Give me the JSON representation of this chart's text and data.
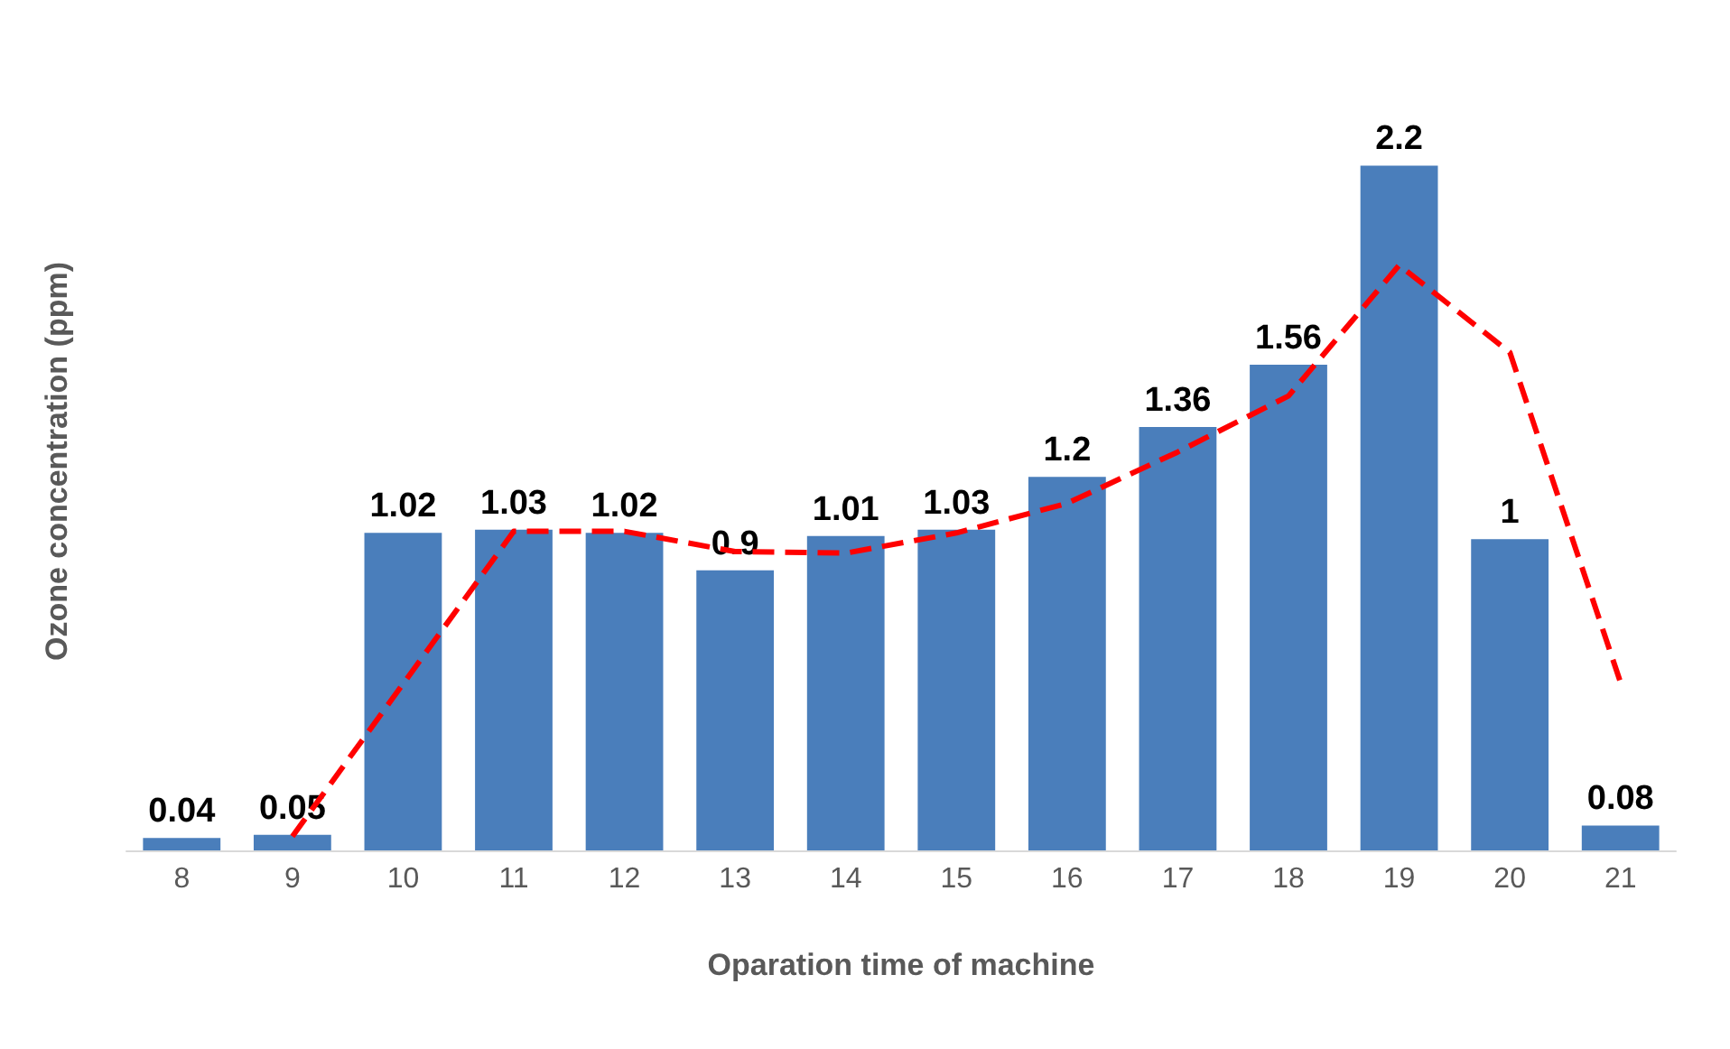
{
  "chart_data": {
    "type": "bar",
    "xlabel": "Oparation time of machine",
    "ylabel": "Ozone concentration (ppm)",
    "categories": [
      "8",
      "9",
      "10",
      "11",
      "12",
      "13",
      "14",
      "15",
      "16",
      "17",
      "18",
      "19",
      "20",
      "21"
    ],
    "grid": false,
    "tick_labels": "x",
    "series": [
      {
        "color": "#4a7ebb",
        "data_labels": true,
        "values": [
          0.04,
          0.05,
          1.02,
          1.03,
          1.02,
          0.9,
          1.01,
          1.03,
          1.2,
          1.36,
          1.56,
          2.2,
          1,
          0.08
        ]
      },
      {
        "type": "line",
        "color": "#ff0000",
        "line_style": "dashed",
        "marker": "none",
        "values": [
          null,
          0.045,
          0.535,
          1.025,
          1.025,
          0.96,
          0.955,
          1.02,
          1.115,
          1.28,
          1.46,
          1.88,
          1.6,
          0.54
        ]
      }
    ]
  }
}
